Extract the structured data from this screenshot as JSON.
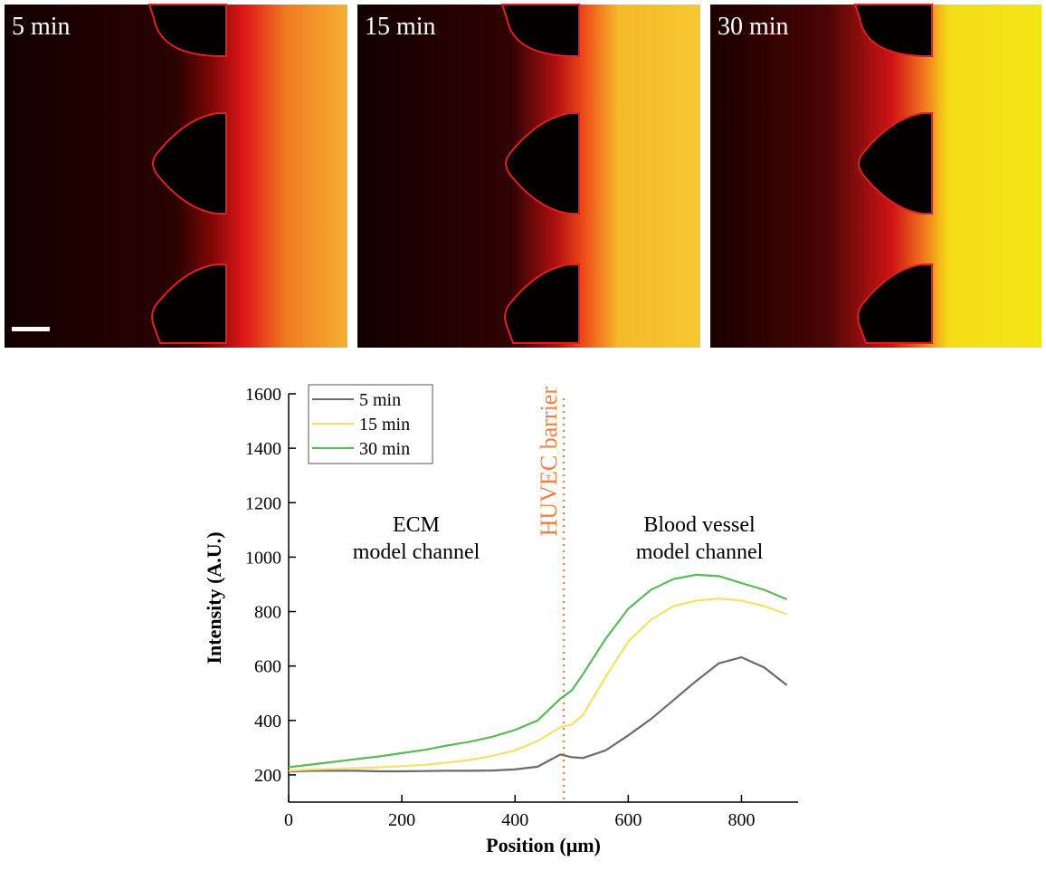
{
  "panels": [
    {
      "label": "5 min"
    },
    {
      "label": "15 min"
    },
    {
      "label": "30 min"
    }
  ],
  "chart_data": {
    "type": "line",
    "xlabel": "Position (μm)",
    "ylabel": "Intensity (A.U.)",
    "xlim": [
      0,
      900
    ],
    "xticks": [
      0,
      200,
      400,
      600,
      800
    ],
    "ylim": [
      100,
      1600
    ],
    "yticks": [
      200,
      400,
      600,
      800,
      1000,
      1200,
      1400,
      1600
    ],
    "legend": "upper left",
    "x": [
      0,
      40,
      80,
      120,
      160,
      200,
      240,
      280,
      320,
      360,
      400,
      440,
      480,
      500,
      520,
      560,
      600,
      640,
      680,
      720,
      760,
      800,
      840,
      880
    ],
    "series": [
      {
        "name": "5 min",
        "color": "#6b6b6b",
        "values": [
          212,
          215,
          215,
          215,
          213,
          213,
          214,
          215,
          215,
          216,
          220,
          230,
          275,
          265,
          262,
          290,
          345,
          405,
          475,
          545,
          610,
          632,
          595,
          530
        ]
      },
      {
        "name": "15 min",
        "color": "#f2e26a",
        "values": [
          215,
          220,
          222,
          225,
          228,
          232,
          237,
          245,
          255,
          270,
          290,
          325,
          375,
          385,
          420,
          560,
          690,
          770,
          820,
          840,
          848,
          840,
          820,
          790
        ]
      },
      {
        "name": "30 min",
        "color": "#5cb85c",
        "values": [
          228,
          238,
          248,
          258,
          268,
          280,
          292,
          308,
          322,
          340,
          365,
          400,
          480,
          510,
          570,
          700,
          810,
          880,
          920,
          935,
          930,
          905,
          880,
          845
        ]
      }
    ],
    "ecm_label": [
      "ECM",
      "model channel"
    ],
    "vessel_label": [
      "Blood vessel",
      "model channel"
    ],
    "barrier": {
      "label": "HUVEC barrier",
      "x": 486,
      "color": "#e8844a"
    }
  }
}
